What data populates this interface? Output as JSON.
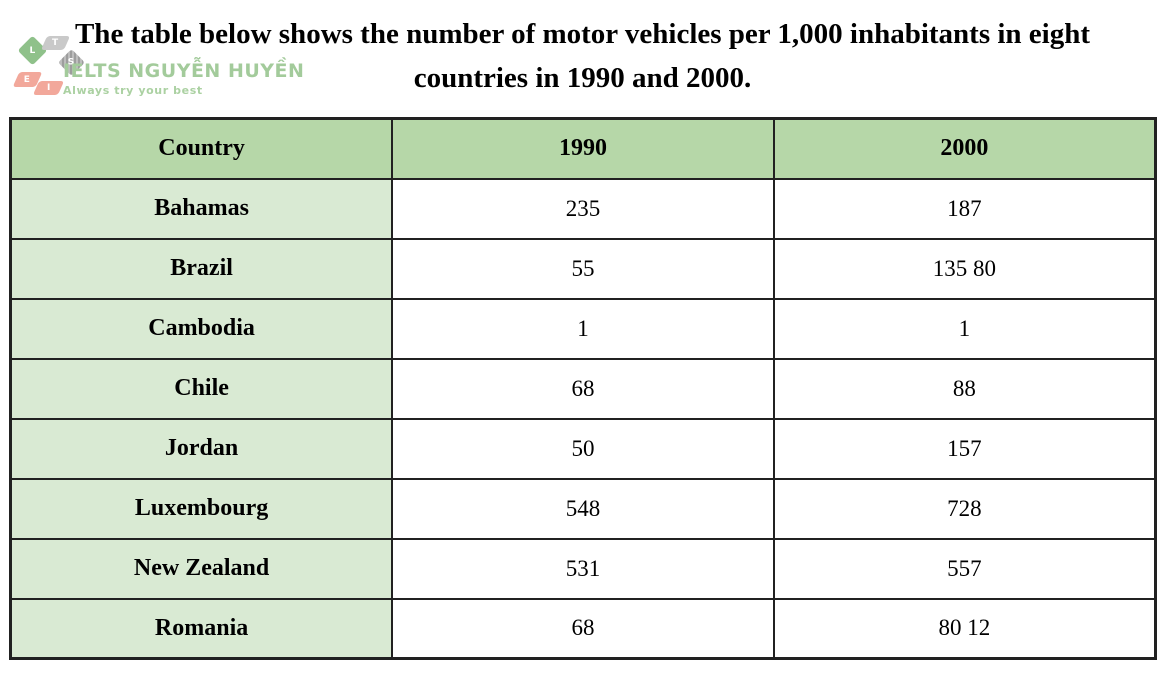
{
  "title": {
    "text": "The table below shows the number of motor vehicles per 1,000 inhabitants in eight countries in 1990 and 2000."
  },
  "logo": {
    "brand": "IELTS NGUYỄN HUYỀN",
    "tagline": "Always try your best",
    "letters": [
      "L",
      "T",
      "S",
      "E",
      "I"
    ],
    "colors": {
      "green": "#8fc18a",
      "gray": "#c9c9c9",
      "salmon": "#f2a89b",
      "text_green": "#a3cb9b"
    }
  },
  "table": {
    "headers": [
      "Country",
      "1990",
      "2000"
    ],
    "rows": [
      {
        "country": "Bahamas",
        "v1990": "235",
        "v2000": "187"
      },
      {
        "country": "Brazil",
        "v1990": "55",
        "v2000": "135 80"
      },
      {
        "country": "Cambodia",
        "v1990": "1",
        "v2000": "1"
      },
      {
        "country": "Chile",
        "v1990": "68",
        "v2000": "88"
      },
      {
        "country": "Jordan",
        "v1990": "50",
        "v2000": "157"
      },
      {
        "country": "Luxembourg",
        "v1990": "548",
        "v2000": "728"
      },
      {
        "country": "New Zealand",
        "v1990": "531",
        "v2000": "557"
      },
      {
        "country": "Romania",
        "v1990": "68",
        "v2000": "80 12"
      }
    ],
    "colors": {
      "header_bg": "#b6d7a8",
      "row_label_bg": "#d9ead3",
      "border": "#212121"
    }
  },
  "chart_data": {
    "type": "table",
    "title": "The table below shows the number of motor vehicles per 1,000 inhabitants in eight countries in 1990 and 2000.",
    "columns": [
      "Country",
      "1990",
      "2000"
    ],
    "rows": [
      [
        "Bahamas",
        "235",
        "187"
      ],
      [
        "Brazil",
        "55",
        "135 80"
      ],
      [
        "Cambodia",
        "1",
        "1"
      ],
      [
        "Chile",
        "68",
        "88"
      ],
      [
        "Jordan",
        "50",
        "157"
      ],
      [
        "Luxembourg",
        "548",
        "728"
      ],
      [
        "New Zealand",
        "531",
        "557"
      ],
      [
        "Romania",
        "68",
        "80 12"
      ]
    ]
  }
}
